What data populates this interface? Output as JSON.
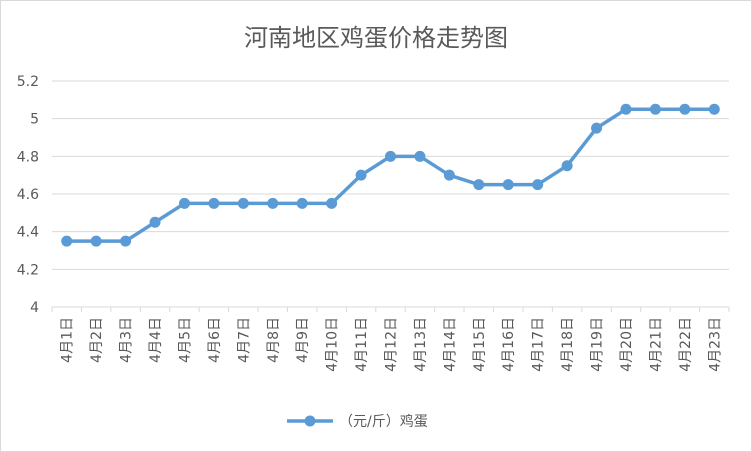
{
  "chart_data": {
    "type": "line",
    "title": "河南地区鸡蛋价格走势图",
    "categories": [
      "4月1日",
      "4月2日",
      "4月3日",
      "4月4日",
      "4月5日",
      "4月6日",
      "4月7日",
      "4月8日",
      "4月9日",
      "4月10日",
      "4月11日",
      "4月12日",
      "4月13日",
      "4月14日",
      "4月15日",
      "4月16日",
      "4月17日",
      "4月18日",
      "4月19日",
      "4月20日",
      "4月21日",
      "4月22日",
      "4月23日"
    ],
    "series": [
      {
        "name": "（元/斤）鸡蛋",
        "color": "#5b9bd5",
        "values": [
          4.35,
          4.35,
          4.35,
          4.45,
          4.55,
          4.55,
          4.55,
          4.55,
          4.55,
          4.55,
          4.7,
          4.8,
          4.8,
          4.7,
          4.65,
          4.65,
          4.65,
          4.75,
          4.95,
          5.05,
          5.05,
          5.05,
          5.05
        ]
      }
    ],
    "ylim": [
      4,
      5.2
    ],
    "yticks": [
      "4",
      "4.2",
      "4.4",
      "4.6",
      "4.8",
      "5",
      "5.2"
    ],
    "grid": true,
    "legend_position": "bottom"
  }
}
